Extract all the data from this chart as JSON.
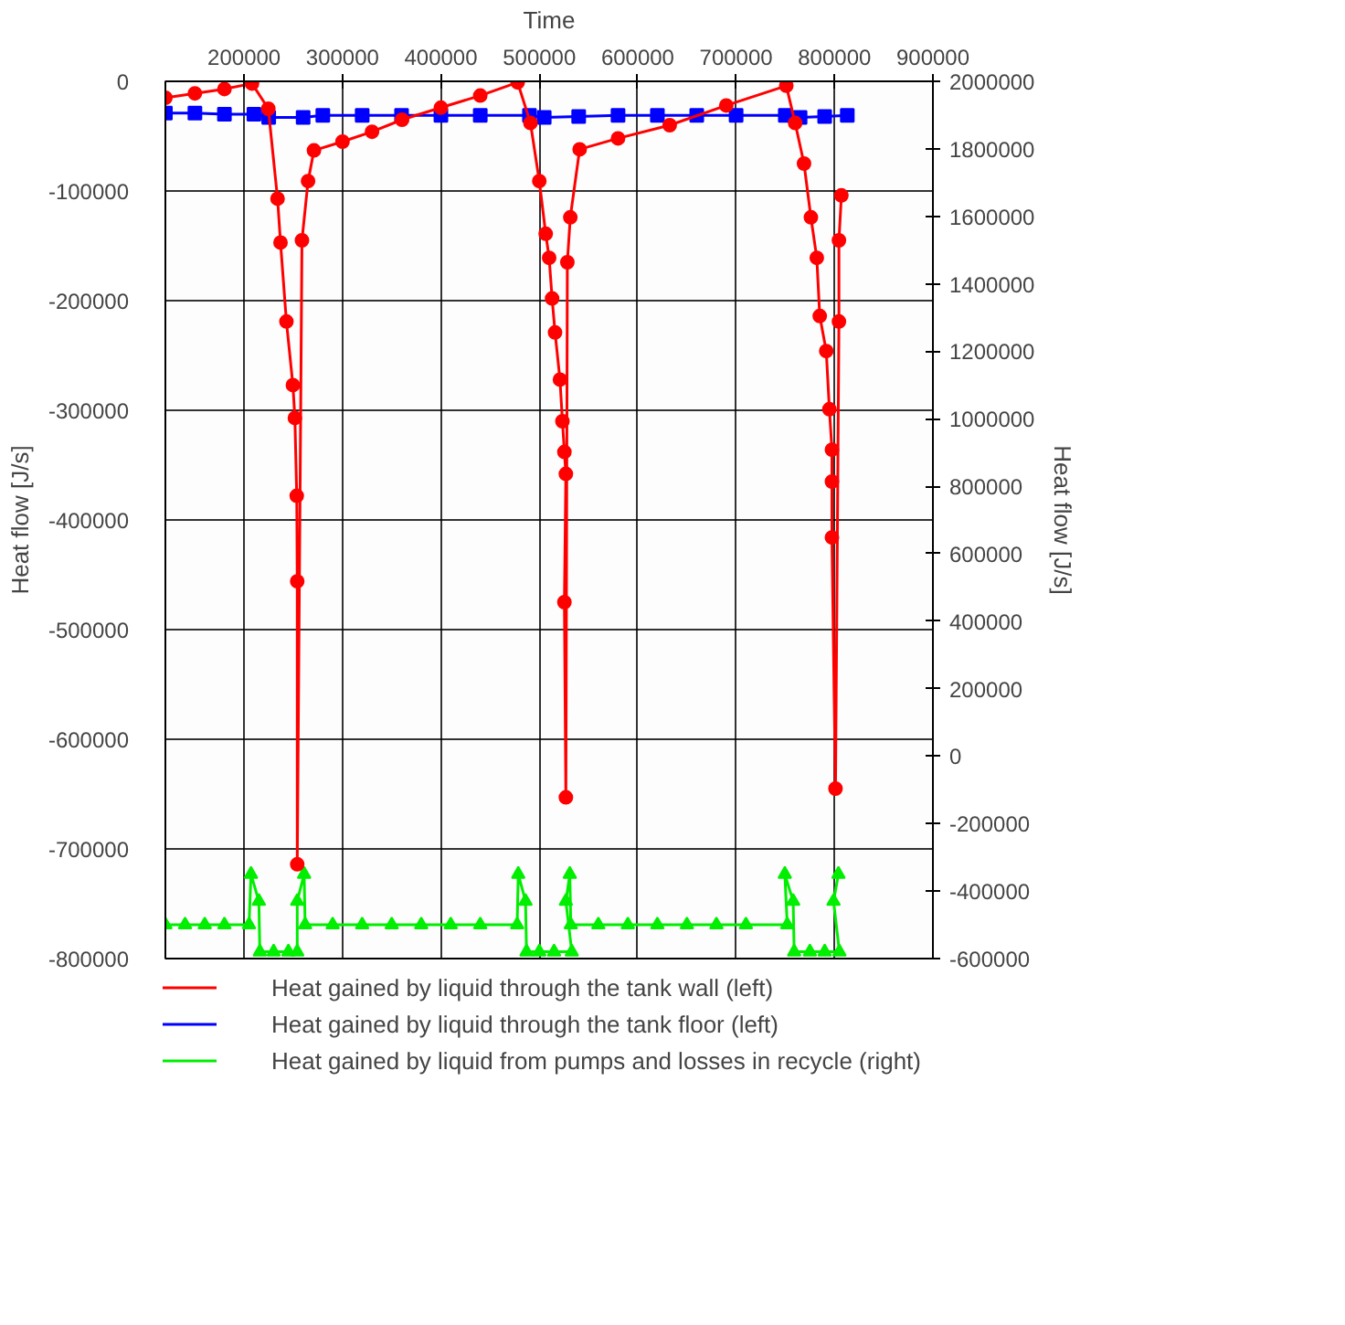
{
  "chart_data": {
    "type": "line",
    "xlabel": "Time",
    "ylabel": "Heat flow [J/s]",
    "y2label": "Heat flow [J/s]",
    "xlim": [
      120000,
      900000
    ],
    "xticks": [
      200000,
      300000,
      400000,
      500000,
      600000,
      700000,
      800000,
      900000
    ],
    "ylim": [
      -800000,
      0
    ],
    "yticks": [
      -800000,
      -700000,
      -600000,
      -500000,
      -400000,
      -300000,
      -200000,
      -100000,
      0
    ],
    "y2lim": [
      -600000,
      2000000
    ],
    "y2ticks": [
      -600000,
      -400000,
      -200000,
      0,
      200000,
      400000,
      600000,
      800000,
      1000000,
      1200000,
      1400000,
      1600000,
      1800000,
      2000000
    ],
    "grid": true,
    "legend": "bottom",
    "line_style": "solid",
    "series": [
      {
        "name": "Heat gained by liquid through the tank wall (left)",
        "color": "#ff0000",
        "marker": "circle",
        "axis": "y",
        "x": [
          120000,
          150000,
          180000,
          208000,
          224600,
          234000,
          237000,
          243000,
          249600,
          251600,
          253500,
          254000,
          254000,
          258800,
          265000,
          271000,
          300000,
          330000,
          360500,
          400000,
          440000,
          478000,
          491000,
          500000,
          506500,
          510000,
          513000,
          516000,
          521000,
          523500,
          525500,
          527000,
          525500,
          527000,
          528500,
          531500,
          541000,
          580000,
          632500,
          690000,
          751000,
          760000,
          769000,
          776000,
          782000,
          785000,
          791600,
          794800,
          797400,
          797400,
          797400,
          801000,
          804500,
          804500,
          807000
        ],
        "values": [
          -15000,
          -11000,
          -7000,
          -2000,
          -25000,
          -107000,
          -147000,
          -219000,
          -277000,
          -307000,
          -378000,
          -456000,
          -714000,
          -145000,
          -91000,
          -63000,
          -55000,
          -46000,
          -35000,
          -24000,
          -13000,
          -1000,
          -38000,
          -91000,
          -139000,
          -161000,
          -198000,
          -229000,
          -272000,
          -310000,
          -338000,
          -358000,
          -475000,
          -653000,
          -165000,
          -124000,
          -62000,
          -52000,
          -40000,
          -22000,
          -4000,
          -38000,
          -75000,
          -124000,
          -161000,
          -214000,
          -246000,
          -299000,
          -336000,
          -365000,
          -416000,
          -645000,
          -219000,
          -145000,
          -104000
        ]
      },
      {
        "name": "Heat gained by liquid through the tank floor (left)",
        "color": "#0000ff",
        "marker": "square",
        "axis": "y",
        "x": [
          120000,
          150000,
          180000,
          210000,
          225000,
          260000,
          280000,
          320000,
          360000,
          400000,
          440000,
          490000,
          505000,
          540000,
          580000,
          620000,
          660000,
          700000,
          750000,
          765000,
          790000,
          813000
        ],
        "values": [
          -29000,
          -29000,
          -30000,
          -30000,
          -33000,
          -33000,
          -31000,
          -31000,
          -31000,
          -31000,
          -31000,
          -31000,
          -33000,
          -32000,
          -31000,
          -31000,
          -31000,
          -31000,
          -31000,
          -33000,
          -32000,
          -31000
        ]
      },
      {
        "name": "Heat gained by liquid from pumps and losses in recycle (right)",
        "color": "#00ee00",
        "marker": "triangle",
        "axis": "y2",
        "x": [
          120000,
          140000,
          160000,
          180000,
          205000,
          207000,
          215000,
          216000,
          230000,
          245000,
          254000,
          254000,
          261000,
          262000,
          290000,
          320000,
          350000,
          380000,
          410000,
          440000,
          477500,
          478600,
          486000,
          487000,
          500000,
          515000,
          533000,
          527000,
          531000,
          532000,
          560000,
          590000,
          620000,
          650000,
          680000,
          710000,
          752000,
          749500,
          758000,
          759000,
          775000,
          790000,
          805000,
          799000,
          804000
        ],
        "values": [
          -500000,
          -500000,
          -500000,
          -500000,
          -500000,
          -350000,
          -430000,
          -580000,
          -580000,
          -580000,
          -580000,
          -430000,
          -350000,
          -500000,
          -500000,
          -500000,
          -500000,
          -500000,
          -500000,
          -500000,
          -500000,
          -350000,
          -430000,
          -580000,
          -580000,
          -580000,
          -580000,
          -430000,
          -350000,
          -500000,
          -500000,
          -500000,
          -500000,
          -500000,
          -500000,
          -500000,
          -500000,
          -350000,
          -430000,
          -580000,
          -580000,
          -580000,
          -580000,
          -430000,
          -350000
        ]
      }
    ]
  }
}
